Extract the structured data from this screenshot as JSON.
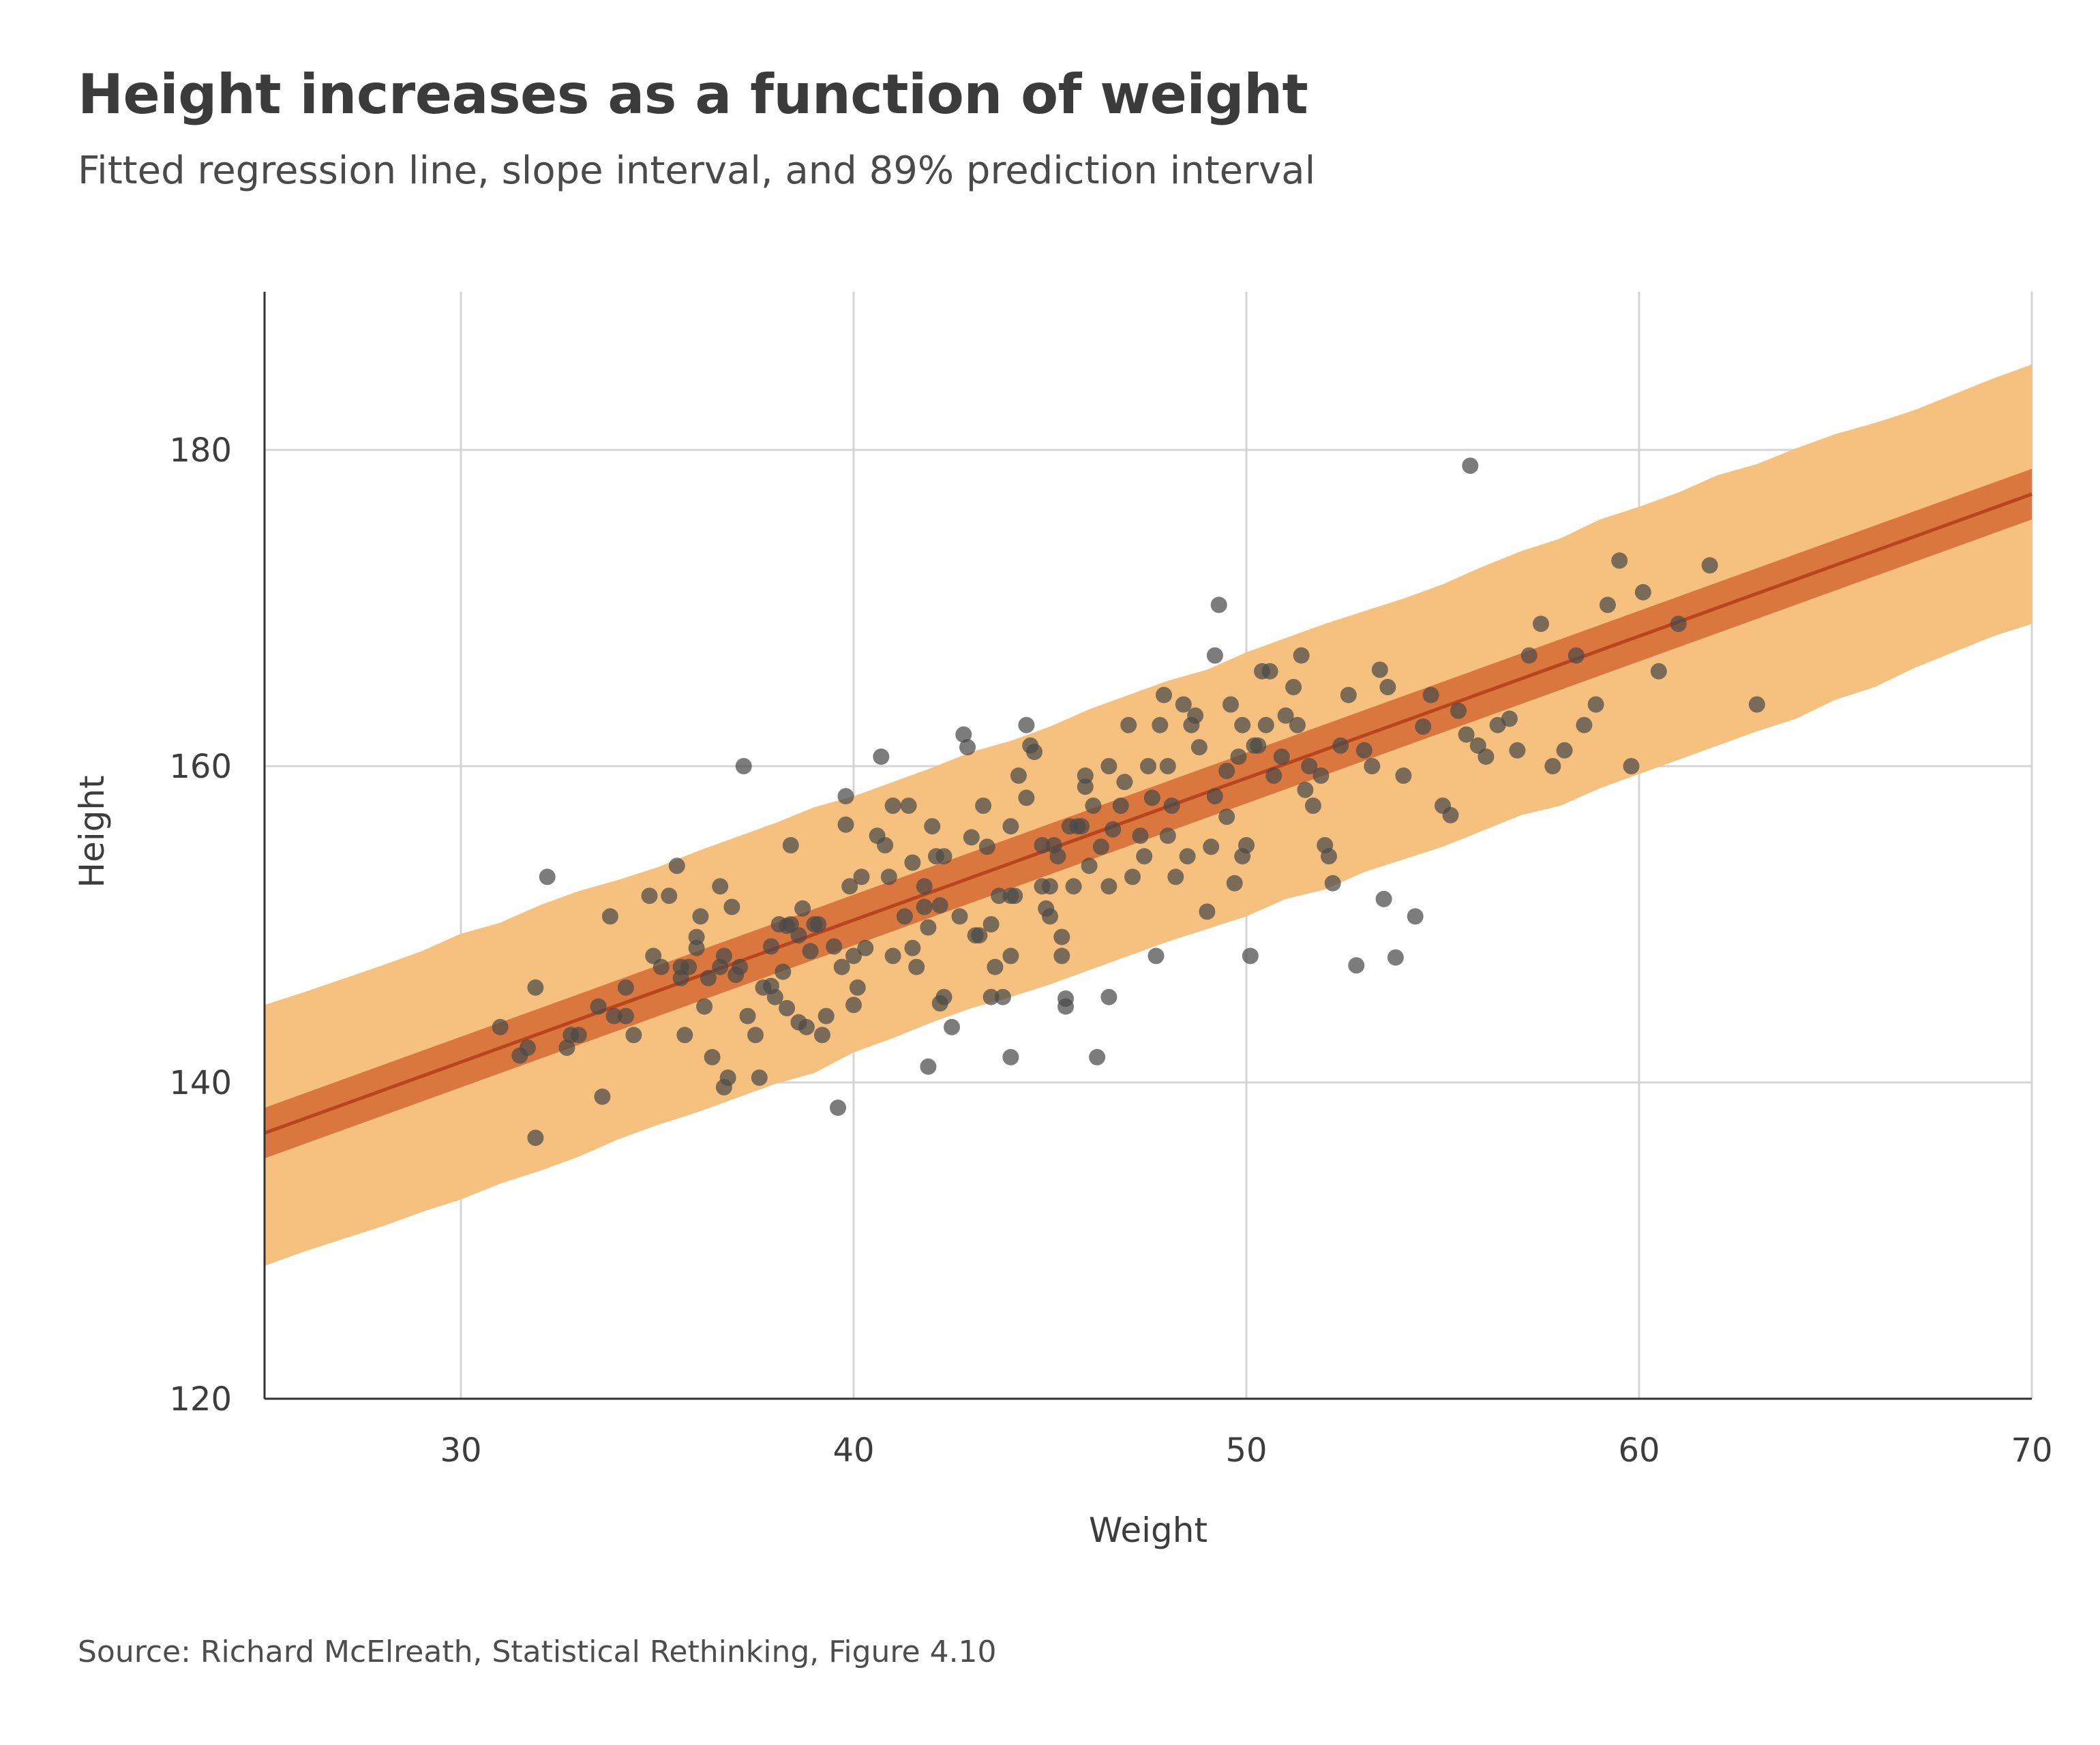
{
  "title": "Height increases as a function of weight",
  "subtitle": "Fitted regression line, slope interval, and 89% prediction interval",
  "source": "Source: Richard McElreath, Statistical Rethinking, Figure 4.10",
  "colors": {
    "prediction_band": "#f6c07e",
    "slope_band": "#d9773f",
    "regression_line": "#b8451c",
    "points": "#4a4a4a",
    "grid": "#d4d4d4",
    "axis": "#333333"
  },
  "chart_data": {
    "type": "scatter",
    "xlabel": "Weight",
    "ylabel": "Height",
    "xlim": [
      25,
      70
    ],
    "ylim": [
      120,
      190
    ],
    "xticks": [
      30,
      40,
      50,
      60,
      70
    ],
    "yticks": [
      120,
      140,
      160,
      180
    ],
    "grid": true,
    "regression_line": {
      "x": [
        25,
        70
      ],
      "y": [
        136.8,
        177.2
      ]
    },
    "slope_interval": {
      "x": [
        25,
        70
      ],
      "lower": [
        135.2,
        175.6
      ],
      "upper": [
        138.4,
        178.8
      ]
    },
    "prediction_interval_89": {
      "x": [
        25,
        26,
        28,
        29,
        30,
        31,
        32,
        33,
        34,
        35,
        36,
        37,
        38,
        39,
        40,
        41,
        42,
        43,
        44,
        45,
        46,
        47,
        48,
        49,
        50,
        51,
        52,
        53,
        54,
        55,
        56,
        57,
        58,
        59,
        60,
        61,
        62,
        63,
        64,
        65,
        66,
        67,
        68,
        69,
        70
      ],
      "lower": [
        128.4,
        129.3,
        130.9,
        131.8,
        132.6,
        133.6,
        134.4,
        135.3,
        136.4,
        137.3,
        138.1,
        139.0,
        139.9,
        140.6,
        141.9,
        142.8,
        143.8,
        144.7,
        145.4,
        146.2,
        147.1,
        148.0,
        148.9,
        149.7,
        150.5,
        151.6,
        152.2,
        153.3,
        154.1,
        154.9,
        155.9,
        156.9,
        157.5,
        158.6,
        159.5,
        160.4,
        161.3,
        162.2,
        163.0,
        164.2,
        165.0,
        166.2,
        167.2,
        168.2,
        169.0
      ],
      "upper": [
        144.9,
        145.7,
        147.4,
        148.3,
        149.4,
        150.1,
        151.2,
        152.1,
        152.8,
        153.6,
        154.6,
        155.5,
        156.4,
        157.4,
        158.1,
        159.0,
        159.9,
        160.9,
        161.6,
        162.5,
        163.6,
        164.5,
        165.4,
        166.1,
        167.2,
        168.1,
        169.0,
        169.8,
        170.6,
        171.5,
        172.6,
        173.6,
        174.4,
        175.6,
        176.4,
        177.3,
        178.4,
        179.1,
        180.1,
        181.0,
        181.7,
        182.5,
        183.5,
        184.5,
        185.4
      ]
    },
    "points": [
      [
        31.0,
        143.5
      ],
      [
        31.5,
        141.7
      ],
      [
        31.7,
        142.2
      ],
      [
        31.9,
        146.0
      ],
      [
        31.9,
        136.5
      ],
      [
        32.2,
        153.0
      ],
      [
        32.7,
        142.2
      ],
      [
        32.8,
        143.0
      ],
      [
        33.0,
        143.0
      ],
      [
        33.5,
        144.8
      ],
      [
        33.6,
        139.1
      ],
      [
        33.8,
        150.5
      ],
      [
        33.9,
        144.2
      ],
      [
        34.2,
        146.0
      ],
      [
        34.2,
        144.2
      ],
      [
        34.4,
        143.0
      ],
      [
        34.8,
        151.8
      ],
      [
        34.9,
        148.0
      ],
      [
        35.1,
        147.3
      ],
      [
        35.3,
        151.8
      ],
      [
        35.5,
        153.7
      ],
      [
        35.6,
        147.3
      ],
      [
        35.6,
        146.6
      ],
      [
        35.7,
        143.0
      ],
      [
        35.8,
        147.3
      ],
      [
        36.0,
        149.2
      ],
      [
        36.0,
        148.5
      ],
      [
        36.1,
        150.5
      ],
      [
        36.2,
        144.8
      ],
      [
        36.3,
        146.6
      ],
      [
        36.4,
        141.6
      ],
      [
        36.6,
        152.4
      ],
      [
        36.6,
        147.3
      ],
      [
        36.7,
        148.0
      ],
      [
        36.7,
        139.7
      ],
      [
        36.8,
        140.3
      ],
      [
        36.9,
        151.1
      ],
      [
        37.0,
        146.8
      ],
      [
        37.1,
        147.3
      ],
      [
        37.2,
        160.0
      ],
      [
        37.3,
        144.2
      ],
      [
        37.5,
        143.0
      ],
      [
        37.6,
        140.3
      ],
      [
        37.7,
        146.0
      ],
      [
        37.9,
        148.6
      ],
      [
        37.9,
        146.1
      ],
      [
        38.0,
        145.4
      ],
      [
        38.1,
        150.0
      ],
      [
        38.2,
        147.0
      ],
      [
        38.3,
        144.7
      ],
      [
        38.3,
        149.9
      ],
      [
        38.4,
        155.0
      ],
      [
        38.4,
        150.0
      ],
      [
        38.6,
        149.3
      ],
      [
        38.6,
        143.8
      ],
      [
        38.7,
        151.0
      ],
      [
        38.8,
        143.5
      ],
      [
        38.9,
        148.3
      ],
      [
        39.0,
        150.0
      ],
      [
        39.1,
        150.0
      ],
      [
        39.2,
        143.0
      ],
      [
        39.3,
        144.2
      ],
      [
        39.5,
        148.6
      ],
      [
        39.6,
        138.4
      ],
      [
        39.7,
        147.3
      ],
      [
        39.8,
        158.1
      ],
      [
        39.8,
        156.3
      ],
      [
        39.9,
        152.4
      ],
      [
        40.0,
        148.0
      ],
      [
        40.0,
        144.9
      ],
      [
        40.1,
        146.0
      ],
      [
        40.2,
        153.0
      ],
      [
        40.3,
        148.5
      ],
      [
        40.6,
        155.6
      ],
      [
        40.7,
        160.6
      ],
      [
        40.8,
        155.0
      ],
      [
        40.9,
        153.0
      ],
      [
        41.0,
        157.5
      ],
      [
        41.0,
        148.0
      ],
      [
        41.3,
        150.5
      ],
      [
        41.4,
        157.5
      ],
      [
        41.5,
        153.9
      ],
      [
        41.5,
        148.5
      ],
      [
        41.6,
        147.3
      ],
      [
        41.8,
        152.4
      ],
      [
        41.8,
        151.1
      ],
      [
        41.9,
        149.8
      ],
      [
        41.9,
        141.0
      ],
      [
        42.0,
        156.2
      ],
      [
        42.1,
        154.3
      ],
      [
        42.2,
        151.2
      ],
      [
        42.2,
        145.0
      ],
      [
        42.3,
        154.3
      ],
      [
        42.3,
        145.4
      ],
      [
        42.5,
        143.5
      ],
      [
        42.7,
        150.5
      ],
      [
        42.8,
        162.0
      ],
      [
        42.9,
        161.2
      ],
      [
        43.0,
        155.5
      ],
      [
        43.1,
        149.3
      ],
      [
        43.2,
        149.3
      ],
      [
        43.3,
        157.5
      ],
      [
        43.4,
        154.9
      ],
      [
        43.5,
        145.4
      ],
      [
        43.5,
        150.0
      ],
      [
        43.6,
        147.3
      ],
      [
        43.7,
        151.8
      ],
      [
        43.8,
        145.4
      ],
      [
        44.0,
        148.0
      ],
      [
        44.0,
        156.2
      ],
      [
        44.0,
        141.6
      ],
      [
        44.0,
        151.8
      ],
      [
        44.1,
        151.8
      ],
      [
        44.2,
        159.4
      ],
      [
        44.4,
        162.6
      ],
      [
        44.4,
        158.0
      ],
      [
        44.5,
        161.3
      ],
      [
        44.6,
        160.9
      ],
      [
        44.8,
        155.0
      ],
      [
        44.8,
        152.4
      ],
      [
        44.9,
        151.0
      ],
      [
        45.0,
        150.5
      ],
      [
        45.0,
        152.4
      ],
      [
        45.1,
        155.0
      ],
      [
        45.2,
        154.3
      ],
      [
        45.3,
        148.0
      ],
      [
        45.3,
        149.2
      ],
      [
        45.4,
        145.3
      ],
      [
        45.4,
        144.8
      ],
      [
        45.5,
        156.2
      ],
      [
        45.6,
        152.4
      ],
      [
        45.7,
        156.2
      ],
      [
        45.8,
        156.2
      ],
      [
        45.9,
        158.7
      ],
      [
        45.9,
        159.4
      ],
      [
        46.0,
        153.7
      ],
      [
        46.1,
        157.5
      ],
      [
        46.2,
        141.6
      ],
      [
        46.3,
        154.9
      ],
      [
        46.5,
        145.4
      ],
      [
        46.5,
        160.0
      ],
      [
        46.5,
        152.4
      ],
      [
        46.6,
        156.0
      ],
      [
        46.8,
        157.5
      ],
      [
        46.9,
        159.0
      ],
      [
        47.0,
        162.6
      ],
      [
        47.1,
        153.0
      ],
      [
        47.3,
        155.6
      ],
      [
        47.4,
        154.3
      ],
      [
        47.5,
        160.0
      ],
      [
        47.6,
        158.0
      ],
      [
        47.7,
        148.0
      ],
      [
        47.8,
        162.6
      ],
      [
        47.9,
        164.5
      ],
      [
        48.0,
        160.0
      ],
      [
        48.0,
        155.6
      ],
      [
        48.1,
        157.5
      ],
      [
        48.2,
        153.0
      ],
      [
        48.4,
        163.9
      ],
      [
        48.5,
        154.3
      ],
      [
        48.6,
        162.6
      ],
      [
        48.7,
        163.2
      ],
      [
        48.8,
        161.2
      ],
      [
        49.0,
        150.8
      ],
      [
        49.1,
        154.9
      ],
      [
        49.2,
        158.1
      ],
      [
        49.2,
        167.0
      ],
      [
        49.3,
        170.2
      ],
      [
        49.5,
        156.8
      ],
      [
        49.5,
        159.7
      ],
      [
        49.6,
        163.9
      ],
      [
        49.7,
        152.6
      ],
      [
        49.8,
        160.6
      ],
      [
        49.9,
        154.3
      ],
      [
        49.9,
        162.6
      ],
      [
        50.0,
        155.0
      ],
      [
        50.1,
        148.0
      ],
      [
        50.2,
        161.3
      ],
      [
        50.3,
        161.3
      ],
      [
        50.4,
        166.0
      ],
      [
        50.5,
        162.6
      ],
      [
        50.6,
        166.0
      ],
      [
        50.7,
        159.4
      ],
      [
        50.9,
        160.6
      ],
      [
        51.0,
        163.2
      ],
      [
        51.2,
        165.0
      ],
      [
        51.3,
        162.6
      ],
      [
        51.4,
        167.0
      ],
      [
        51.5,
        158.5
      ],
      [
        51.6,
        160.0
      ],
      [
        51.7,
        157.5
      ],
      [
        51.9,
        159.4
      ],
      [
        52.0,
        155.0
      ],
      [
        52.1,
        154.3
      ],
      [
        52.2,
        152.6
      ],
      [
        52.4,
        161.3
      ],
      [
        52.6,
        164.5
      ],
      [
        52.8,
        147.4
      ],
      [
        53.0,
        161.0
      ],
      [
        53.2,
        160.0
      ],
      [
        53.4,
        166.1
      ],
      [
        53.5,
        151.6
      ],
      [
        53.6,
        165.0
      ],
      [
        53.8,
        147.9
      ],
      [
        54.0,
        159.4
      ],
      [
        54.3,
        150.5
      ],
      [
        54.5,
        162.5
      ],
      [
        54.7,
        164.5
      ],
      [
        55.0,
        157.5
      ],
      [
        55.2,
        156.9
      ],
      [
        55.4,
        163.5
      ],
      [
        55.6,
        162.0
      ],
      [
        55.9,
        161.3
      ],
      [
        56.1,
        160.6
      ],
      [
        56.4,
        162.6
      ],
      [
        56.7,
        163.0
      ],
      [
        56.9,
        161.0
      ],
      [
        57.2,
        167.0
      ],
      [
        57.5,
        169.0
      ],
      [
        57.8,
        160.0
      ],
      [
        58.1,
        161.0
      ],
      [
        58.4,
        167.0
      ],
      [
        58.6,
        162.6
      ],
      [
        58.9,
        163.9
      ],
      [
        59.2,
        170.2
      ],
      [
        59.5,
        173.0
      ],
      [
        59.8,
        160.0
      ],
      [
        60.1,
        171.0
      ],
      [
        60.5,
        166.0
      ],
      [
        61.0,
        169.0
      ],
      [
        61.8,
        172.7
      ],
      [
        63.0,
        163.9
      ],
      [
        55.7,
        179.0
      ]
    ]
  }
}
